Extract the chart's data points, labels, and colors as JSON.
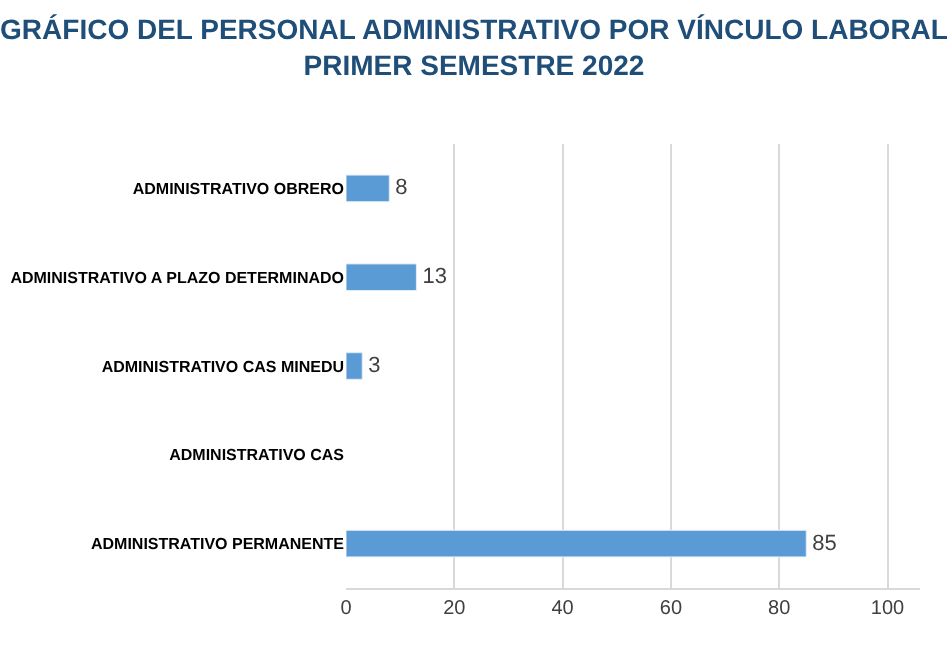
{
  "chart_data": {
    "type": "bar",
    "orientation": "horizontal",
    "title": "GRÁFICO DEL PERSONAL ADMINISTRATIVO POR VÍNCULO LABORAL\nPRIMER SEMESTRE 2022",
    "categories": [
      "ADMINISTRATIVO OBRERO",
      "ADMINISTRATIVO A PLAZO DETERMINADO",
      "ADMINISTRATIVO CAS MINEDU",
      "ADMINISTRATIVO CAS",
      "ADMINISTRATIVO PERMANENTE"
    ],
    "values": [
      8,
      13,
      3,
      null,
      85
    ],
    "value_labels": [
      "8",
      "13",
      "3",
      null,
      "85"
    ],
    "color": "#5b9bd5",
    "xlim": [
      0,
      106
    ],
    "xticks": [
      0,
      20,
      40,
      60,
      80,
      100
    ],
    "grid": "x",
    "legend": false
  }
}
